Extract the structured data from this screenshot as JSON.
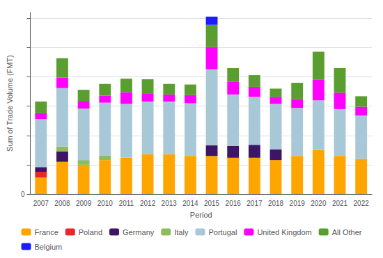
{
  "chart_data": {
    "type": "bar",
    "stacked": true,
    "x_label": "Period",
    "y_label": "Sum of Trade Volume (FMT)",
    "categories": [
      "2007",
      "2008",
      "2009",
      "2010",
      "2011",
      "2012",
      "2013",
      "2014",
      "2015",
      "2016",
      "2017",
      "2018",
      "2019",
      "2020",
      "2021",
      "2022"
    ],
    "series": [
      {
        "name": "France",
        "color": "#ffa500",
        "values": [
          28,
          55,
          50,
          58,
          62,
          68,
          68,
          65,
          65,
          62,
          62,
          58,
          65,
          75,
          65,
          60
        ]
      },
      {
        "name": "Poland",
        "color": "#e8272a",
        "values": [
          10,
          0,
          0,
          0,
          0,
          0,
          0,
          0,
          0,
          0,
          0,
          0,
          0,
          0,
          0,
          0
        ]
      },
      {
        "name": "Germany",
        "color": "#3d1466",
        "values": [
          8,
          18,
          0,
          0,
          0,
          0,
          0,
          0,
          18,
          20,
          22,
          18,
          0,
          0,
          0,
          0
        ]
      },
      {
        "name": "Italy",
        "color": "#8fbc5a",
        "values": [
          0,
          8,
          8,
          8,
          0,
          0,
          0,
          0,
          0,
          0,
          0,
          0,
          0,
          0,
          0,
          0
        ]
      },
      {
        "name": "Portugal",
        "color": "#a8c8d8",
        "values": [
          82,
          100,
          88,
          90,
          92,
          90,
          90,
          90,
          130,
          88,
          82,
          78,
          82,
          85,
          80,
          74
        ]
      },
      {
        "name": "United Kingdom",
        "color": "#ff00ff",
        "values": [
          10,
          18,
          12,
          12,
          20,
          14,
          12,
          14,
          38,
          22,
          17,
          12,
          15,
          35,
          28,
          15
        ]
      },
      {
        "name": "All Other",
        "color": "#5a9e2f",
        "values": [
          20,
          33,
          20,
          20,
          23,
          24,
          18,
          18,
          38,
          23,
          20,
          14,
          28,
          48,
          42,
          18
        ]
      },
      {
        "name": "Belgium",
        "color": "#1c1cff",
        "values": [
          0,
          0,
          0,
          0,
          0,
          0,
          0,
          0,
          14,
          0,
          0,
          0,
          0,
          0,
          0,
          0
        ]
      }
    ],
    "ylim": [
      0,
      310
    ],
    "yticks": [
      0,
      {
        "value": 50,
        "label": ""
      },
      {
        "value": 100,
        "label": ""
      },
      {
        "value": 150,
        "label": ""
      },
      {
        "value": 200,
        "label": ""
      },
      {
        "value": 250,
        "label": ""
      },
      {
        "value": 300,
        "label": ""
      }
    ],
    "grid": true,
    "legend": "bottom"
  }
}
